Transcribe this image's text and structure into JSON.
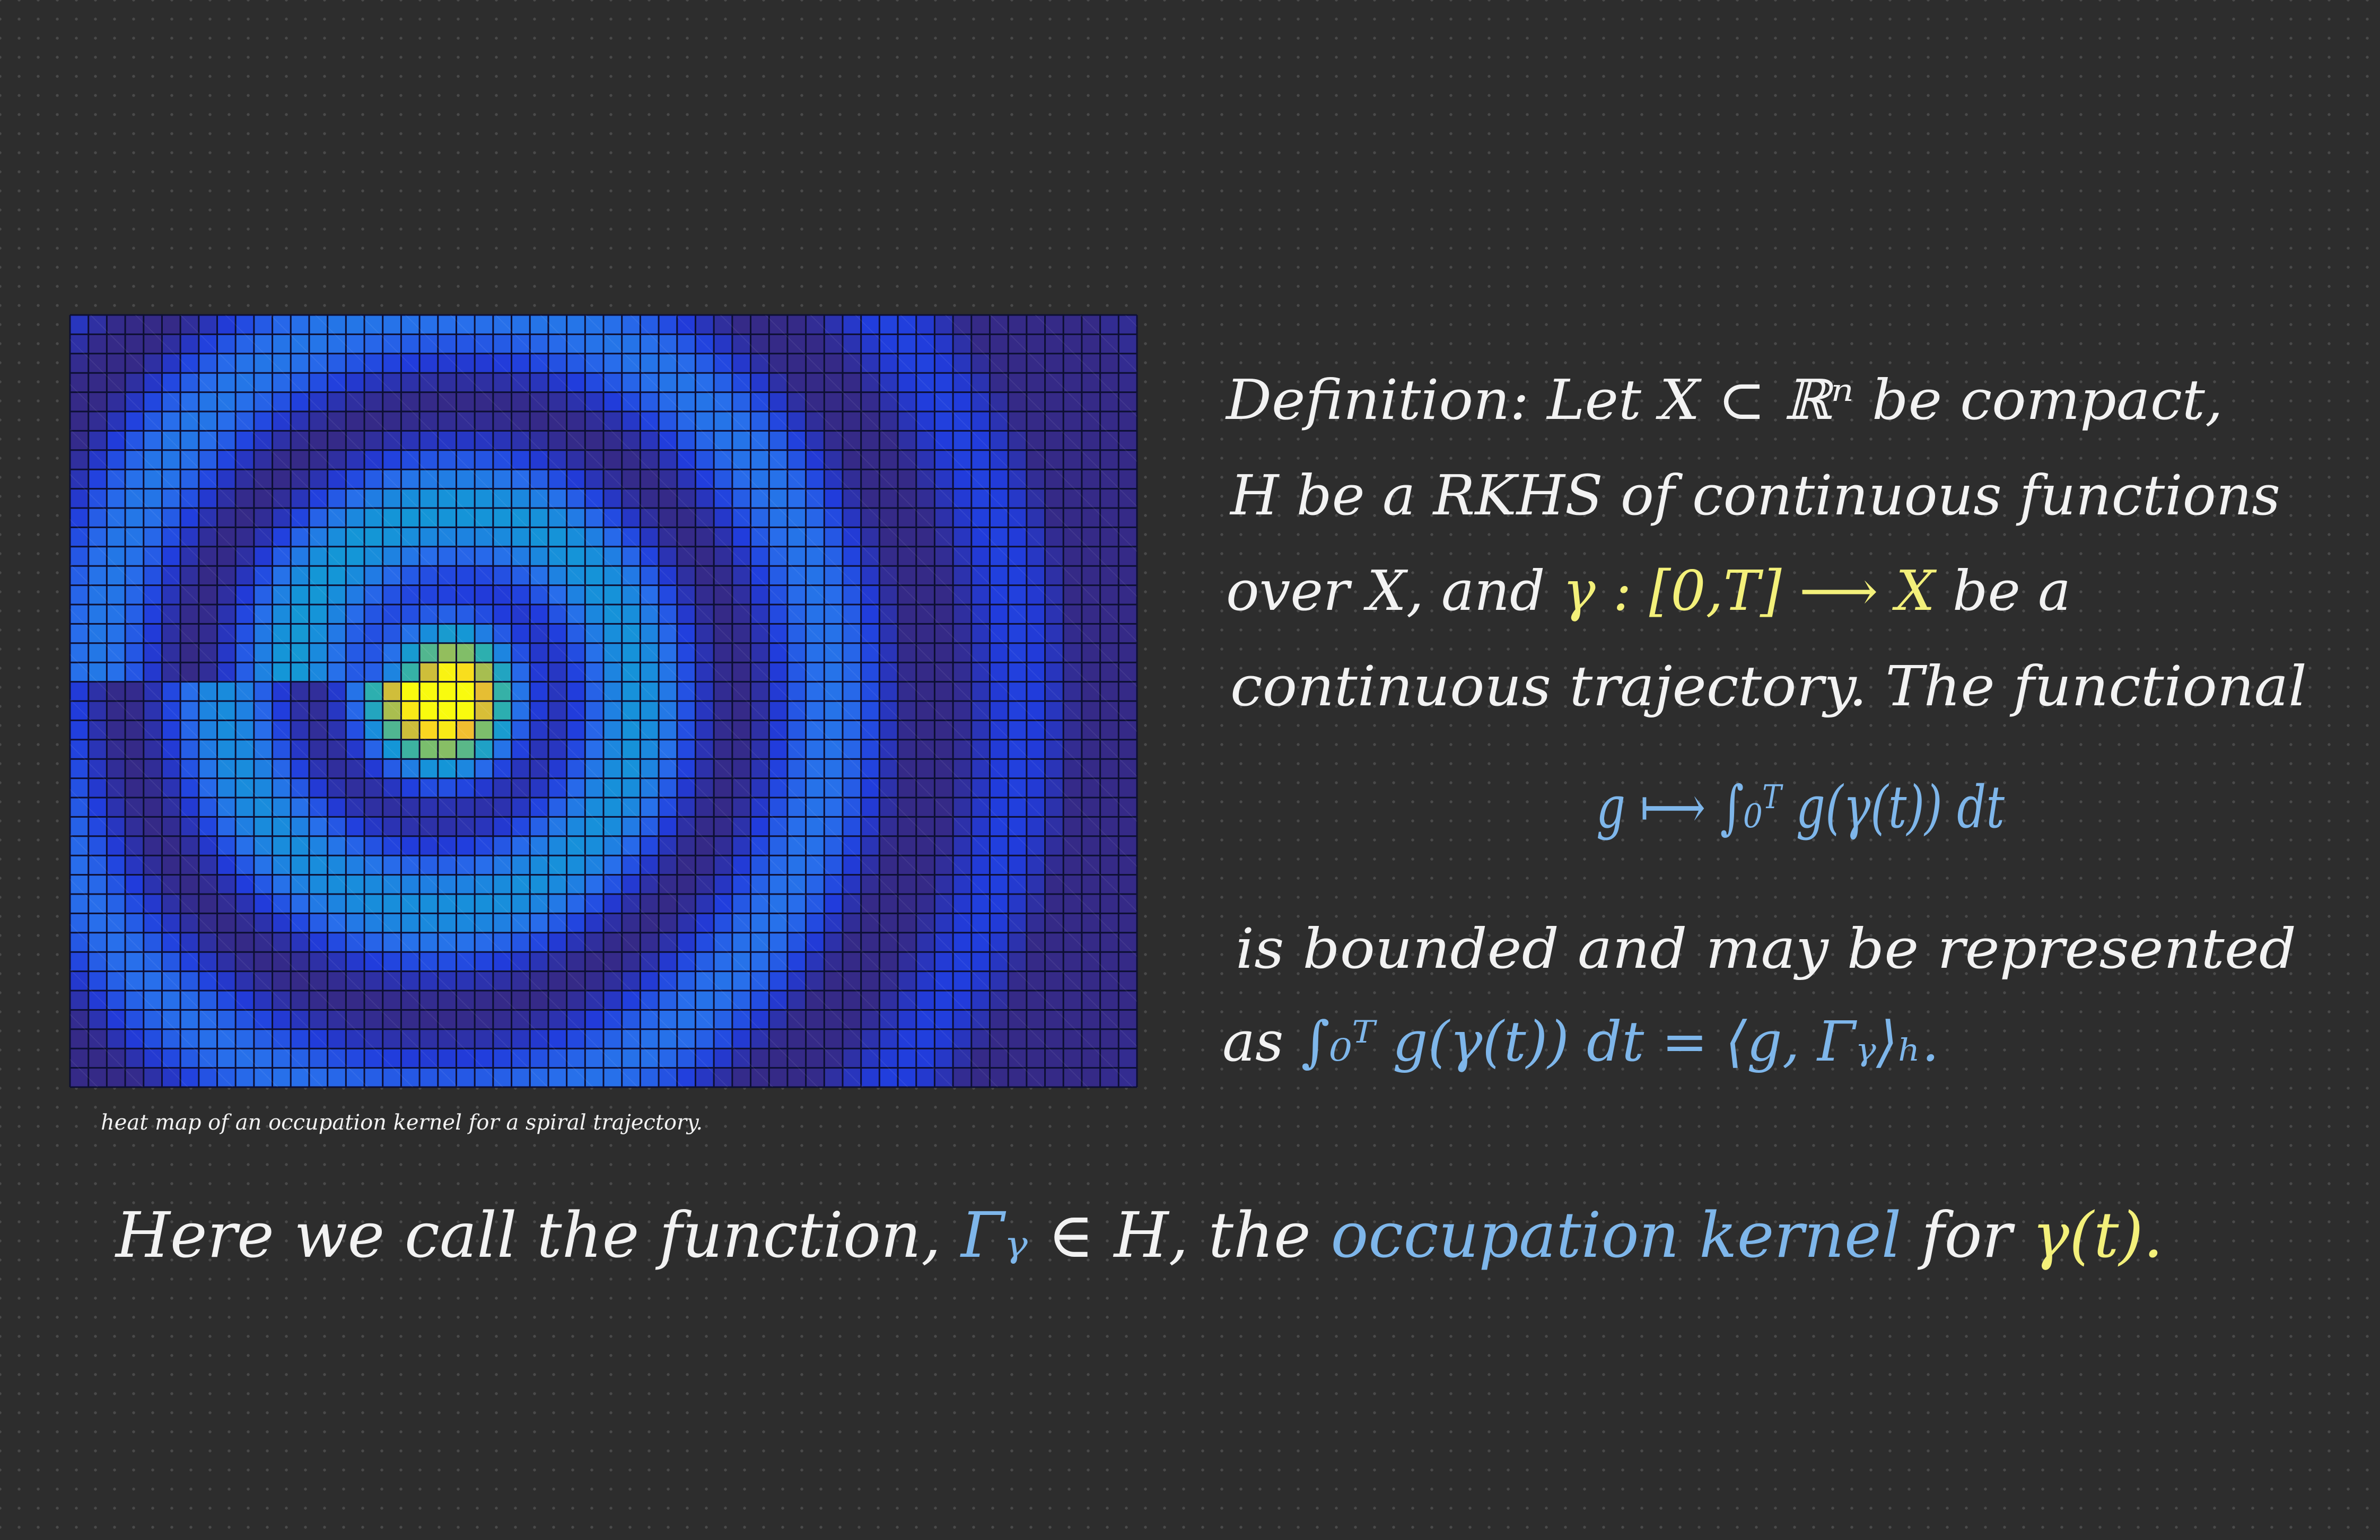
{
  "colors": {
    "background": "#2d2d2d",
    "ink_white": "#f2f2f2",
    "ink_blue": "#7eb6ea",
    "ink_yellow": "#f3f07a",
    "grid_line": "#0d0f33"
  },
  "heatmap": {
    "rows": 40,
    "cols": 58,
    "colormap": "parula",
    "caption": "heat map of an occupation kernel for a spiral trajectory."
  },
  "definition": {
    "line1": "Definition:  Let  X ⊂ ℝⁿ  be  compact,",
    "line2": "H  be a  RKHS  of  continuous  functions",
    "line3_start": "over  X,  and  ",
    "line3_gamma": "γ : [0,T] ⟶ X",
    "line3_end": "  be  a",
    "line4": "continuous  trajectory.  The  functional",
    "formula": "g ⟼ ∫₀ᵀ g(γ(t)) dt",
    "line5": "is  bounded  and  may  be  represented",
    "line6_start": "as  ",
    "line6_formula": "∫₀ᵀ g(γ(t)) dt = ⟨g, Γᵧ⟩ₕ."
  },
  "conclusion": {
    "part1": "Here  we  call  the  function,  ",
    "gamma_symbol": "Γᵧ",
    "part2": " ∈ H,  the  ",
    "term": "occupation  kernel",
    "part3": "  for  ",
    "gamma_t": "γ(t)."
  }
}
